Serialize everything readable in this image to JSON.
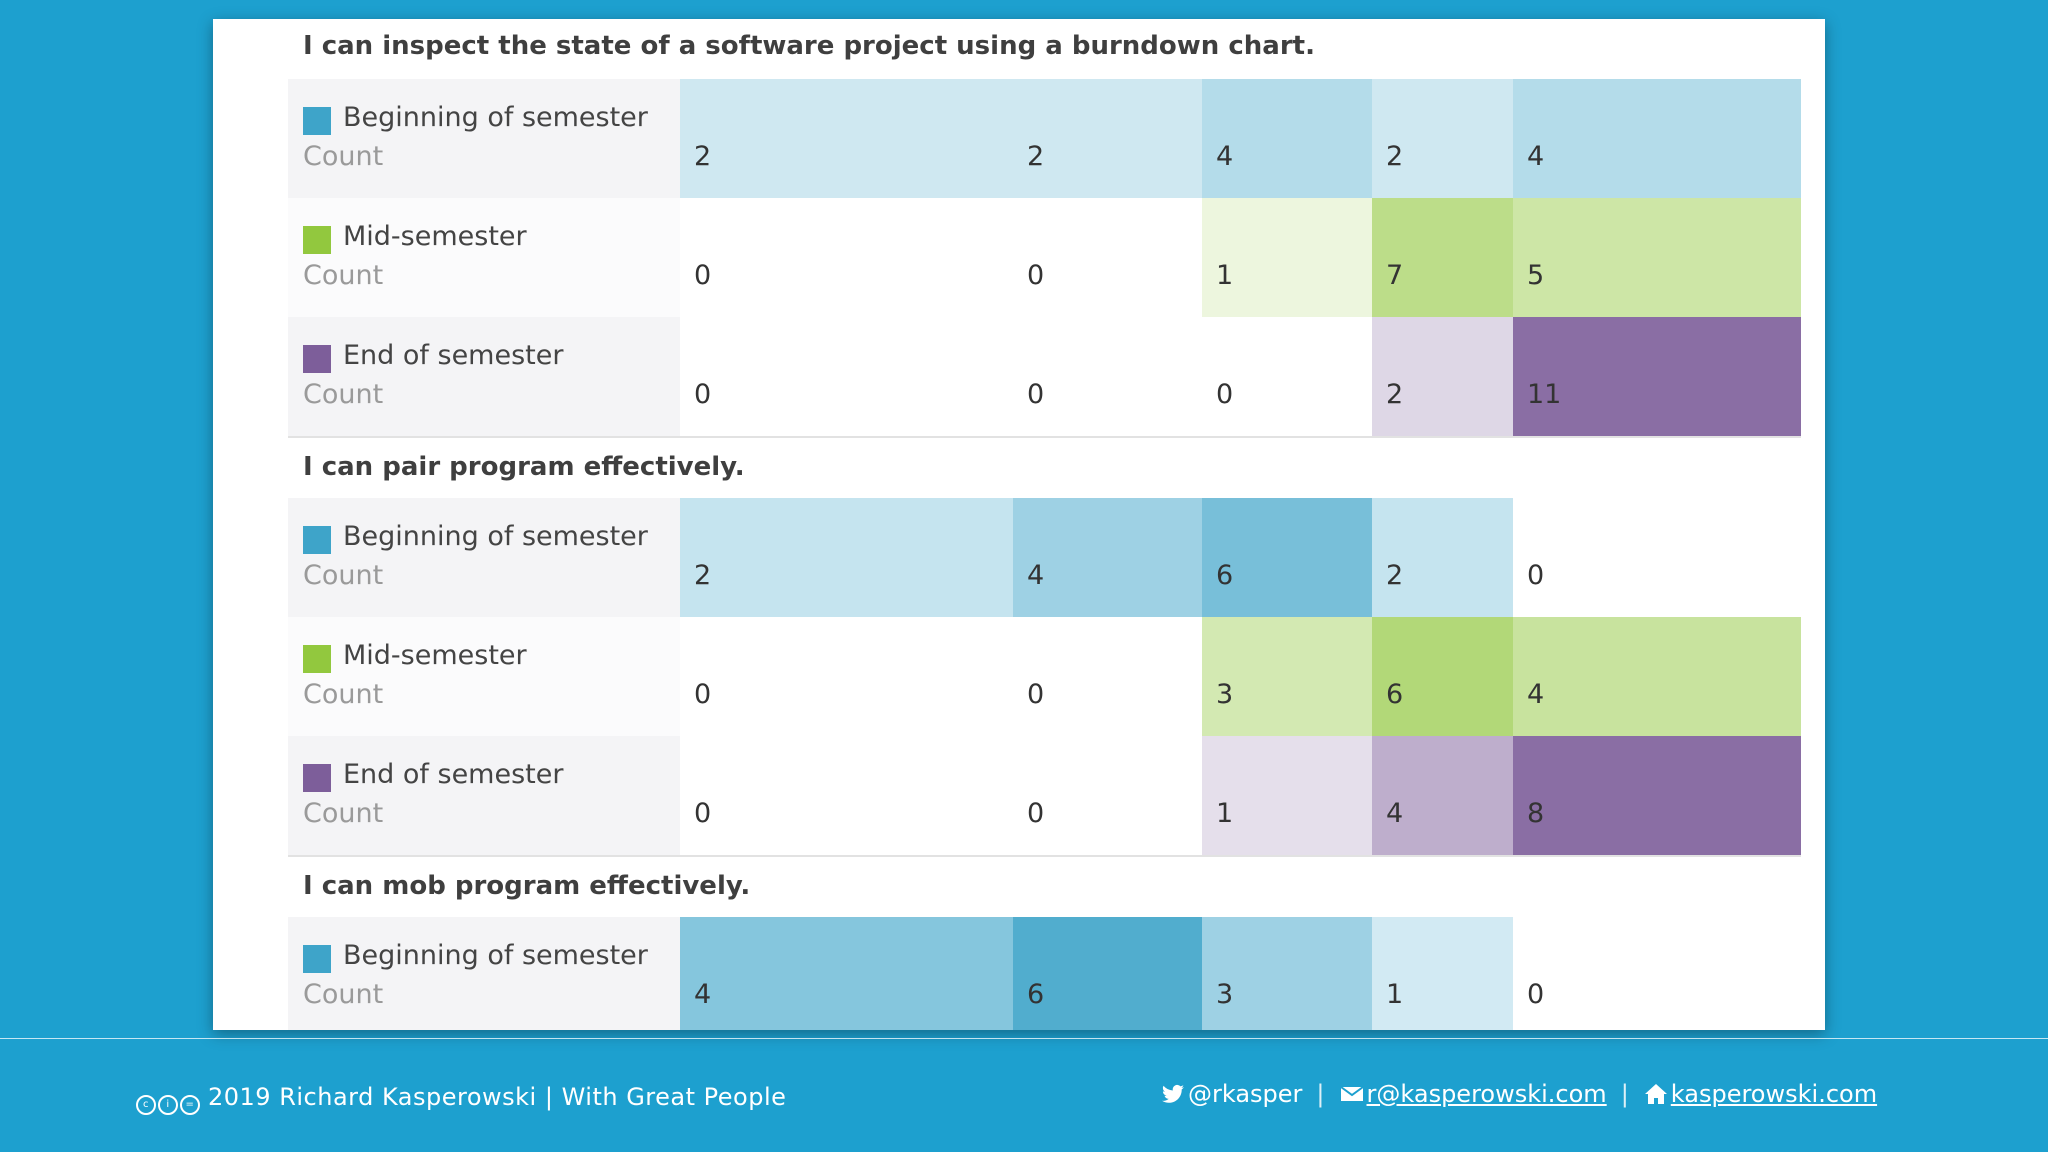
{
  "chart_data": {
    "type": "table",
    "row_label": "Count",
    "phases": [
      {
        "name": "Beginning of semester",
        "color": "#3ea4c9"
      },
      {
        "name": "Mid-semester",
        "color": "#92c83e"
      },
      {
        "name": "End of semester",
        "color": "#7d5e9a"
      }
    ],
    "questions": [
      {
        "title": "I can inspect the state of a software project using a burndown chart.",
        "rows": [
          [
            2,
            2,
            4,
            2,
            4
          ],
          [
            0,
            0,
            1,
            7,
            5
          ],
          [
            0,
            0,
            0,
            2,
            11
          ]
        ]
      },
      {
        "title": "I can pair program effectively.",
        "rows": [
          [
            2,
            4,
            6,
            2,
            0
          ],
          [
            0,
            0,
            3,
            6,
            4
          ],
          [
            0,
            0,
            1,
            4,
            8
          ]
        ]
      },
      {
        "title": "I can mob program effectively.",
        "rows": [
          [
            4,
            6,
            3,
            1,
            0
          ]
        ]
      }
    ]
  },
  "footer": {
    "copyright": "2019 Richard Kasperowski | With Great People",
    "twitter": "@rkasper",
    "email": "r@kasperowski.com",
    "website": "kasperowski.com",
    "separator": "|"
  },
  "colors": {
    "background": "#1da0cf",
    "card": "#ffffff"
  }
}
